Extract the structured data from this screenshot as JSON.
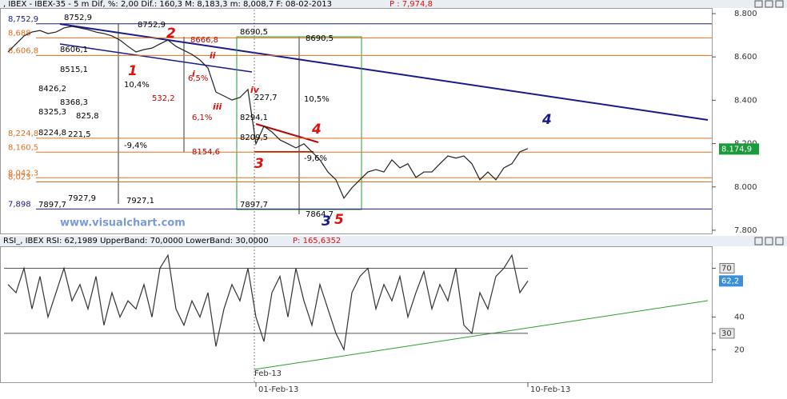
{
  "chart_data": [
    {
      "type": "line",
      "title": ", IBEX - IBEX-35 - 5 m Dif, %: 2,00 Dif.: 160,3 M: 8,183,3 m: 8,008,7 F: 08-02-2013",
      "subtitle": "P : 7,974,8",
      "watermark": "www.visualchart.com",
      "series": [
        {
          "name": "IBEX-35",
          "color": "#222222",
          "values": [
            8623,
            8660,
            8697,
            8715,
            8722,
            8708,
            8715,
            8734,
            8741,
            8734,
            8726,
            8715,
            8708,
            8697,
            8678,
            8649,
            8623,
            8634,
            8641,
            8660,
            8678,
            8649,
            8630,
            8612,
            8586,
            8549,
            8438,
            8420,
            8401,
            8413,
            8450,
            8199,
            8280,
            8254,
            8217,
            8199,
            8180,
            8199,
            8162,
            8125,
            8069,
            8033,
            7948,
            7996,
            8033,
            8069,
            8080,
            8069,
            8125,
            8088,
            8107,
            8044,
            8069,
            8069,
            8107,
            8143,
            8133,
            8143,
            8107,
            8033,
            8069,
            8033,
            8088,
            8107,
            8162,
            8177
          ]
        }
      ],
      "last_value": 8174.9,
      "last_label": "8.174,9",
      "last_color": "#1a9c3a",
      "ylim": [
        7785,
        8826
      ],
      "yticks": [
        {
          "value": 7800,
          "label": "7.800"
        },
        {
          "value": 8000,
          "label": "8.000"
        },
        {
          "value": 8200,
          "label": "8.200"
        },
        {
          "value": 8400,
          "label": "8.400"
        },
        {
          "value": 8600,
          "label": "8.600"
        },
        {
          "value": 8800,
          "label": "8.800"
        }
      ],
      "levels": [
        {
          "value": 8752.9,
          "label": "8,752,9",
          "color": "#1a1a8c"
        },
        {
          "value": 8688,
          "label": "8,688",
          "color": "#e07020"
        },
        {
          "value": 8606.8,
          "label": "8,606,8",
          "color": "#e07020"
        },
        {
          "value": 8224.8,
          "label": "8,224,8",
          "color": "#e07020"
        },
        {
          "value": 8160.5,
          "label": "8,160,5",
          "color": "#e07020"
        },
        {
          "value": 8042.3,
          "label": "8,042,3",
          "color": "#e07020"
        },
        {
          "value": 8023,
          "label": "8,023",
          "color": "#e07020"
        },
        {
          "value": 7898,
          "label": "7,898",
          "color": "#1a1a8c"
        }
      ],
      "annotations": [
        {
          "text": "8752,9",
          "color": "#000000"
        },
        {
          "text": "8752,9",
          "color": "#000000"
        },
        {
          "text": "8666,8",
          "color": "#c00000"
        },
        {
          "text": "8606,1",
          "color": "#000000"
        },
        {
          "text": "8515,1",
          "color": "#000000"
        },
        {
          "text": "10,4%",
          "color": "#000000"
        },
        {
          "text": "8426,2",
          "color": "#000000"
        },
        {
          "text": "532,2",
          "color": "#c00000"
        },
        {
          "text": "8368,3",
          "color": "#000000"
        },
        {
          "text": "8325,3",
          "color": "#000000"
        },
        {
          "text": "825,8",
          "color": "#000000"
        },
        {
          "text": "6,1%",
          "color": "#c00000"
        },
        {
          "text": "6,5%",
          "color": "#c00000"
        },
        {
          "text": "8224,8",
          "color": "#000000"
        },
        {
          "text": "221,5",
          "color": "#000000"
        },
        {
          "text": "-9,4%",
          "color": "#000000"
        },
        {
          "text": "8154,6",
          "color": "#c00000"
        },
        {
          "text": "7927,9",
          "color": "#000000"
        },
        {
          "text": "7927,1",
          "color": "#000000"
        },
        {
          "text": "7897,7",
          "color": "#000000"
        },
        {
          "text": "8690,5",
          "color": "#000000"
        },
        {
          "text": "8690,5",
          "color": "#000000"
        },
        {
          "text": "10,5%",
          "color": "#000000"
        },
        {
          "text": "8294,1",
          "color": "#000000"
        },
        {
          "text": "8209,5",
          "color": "#000000"
        },
        {
          "text": "-9,6%",
          "color": "#000000"
        },
        {
          "text": "7897,7",
          "color": "#000000"
        },
        {
          "text": "7864,7",
          "color": "#000000"
        },
        {
          "text": "227,7",
          "color": "#000000"
        }
      ],
      "waves": [
        {
          "text": "1",
          "color": "#e01010"
        },
        {
          "text": "2",
          "color": "#e01010"
        },
        {
          "text": "3",
          "color": "#e01010"
        },
        {
          "text": "4",
          "color": "#e01010"
        },
        {
          "text": "5",
          "color": "#e01010"
        },
        {
          "text": "3",
          "color": "#1a1a8c"
        },
        {
          "text": "4",
          "color": "#1a1a8c"
        },
        {
          "text": "i",
          "color": "#e01010"
        },
        {
          "text": "ii",
          "color": "#e01010"
        },
        {
          "text": "iii",
          "color": "#e01010"
        },
        {
          "text": "iv",
          "color": "#e01010"
        }
      ]
    },
    {
      "type": "line",
      "title": "RSI_, IBEX RSI: 62,1989 UpperBand: 70,0000 LowerBand: 30,0000",
      "subtitle": "P: 165,6352",
      "series": [
        {
          "name": "RSI",
          "color": "#333333",
          "values": [
            60,
            55,
            70,
            45,
            65,
            40,
            55,
            70,
            50,
            60,
            45,
            65,
            35,
            55,
            40,
            50,
            45,
            60,
            40,
            70,
            78,
            45,
            35,
            50,
            40,
            55,
            22,
            45,
            60,
            50,
            70,
            40,
            25,
            55,
            65,
            40,
            70,
            50,
            35,
            60,
            45,
            30,
            20,
            55,
            65,
            70,
            45,
            60,
            50,
            65,
            40,
            55,
            68,
            45,
            60,
            50,
            70,
            35,
            30,
            55,
            45,
            65,
            70,
            78,
            55,
            62.2
          ]
        }
      ],
      "last_label": "62,2",
      "last_color": "#3a8fd8",
      "ylim": [
        0,
        83.5
      ],
      "yticks": [
        20,
        30,
        40,
        70
      ],
      "bands": [
        30,
        70
      ],
      "xticks": [
        {
          "value": 31,
          "label": "01-Feb-13"
        },
        {
          "value": 65,
          "label": "10-Feb-13"
        }
      ],
      "trend_label": "Feb-13"
    }
  ]
}
